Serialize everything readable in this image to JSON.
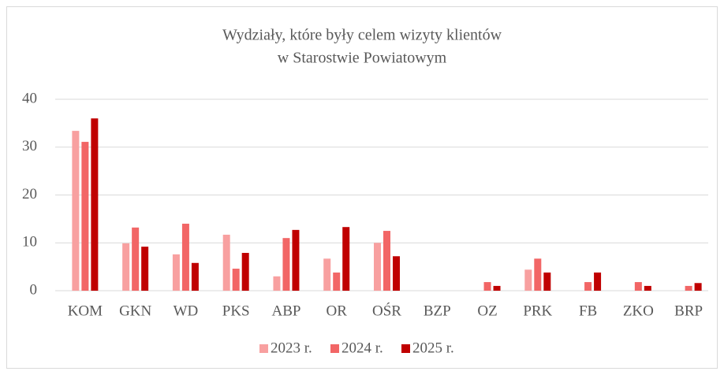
{
  "chart_data": {
    "type": "bar",
    "title": [
      "Wydziały, które były celem wizyty klientów",
      "w Starostwie Powiatowym"
    ],
    "categories": [
      "KOM",
      "GKN",
      "WD",
      "PKS",
      "ABP",
      "OR",
      "OŚR",
      "BZP",
      "OZ",
      "PRK",
      "FB",
      "ZKO",
      "BRP"
    ],
    "series": [
      {
        "name": "2023 r.",
        "color": "#f8a0a0",
        "values": [
          33.4,
          9.9,
          7.6,
          11.7,
          3,
          6.7,
          10,
          0,
          0,
          4.4,
          0,
          0,
          0
        ]
      },
      {
        "name": "2024 r.",
        "color": "#f26666",
        "values": [
          31.1,
          13.2,
          14,
          4.6,
          11,
          3.8,
          12.5,
          0,
          1.8,
          6.7,
          1.8,
          1.8,
          1
        ]
      },
      {
        "name": "2025 r.",
        "color": "#c00000",
        "values": [
          36,
          9.2,
          5.8,
          7.9,
          12.7,
          13.3,
          7.2,
          0,
          1,
          3.8,
          3.8,
          1,
          1.6
        ]
      }
    ],
    "ylim": [
      0,
      40
    ],
    "yticks": [
      0,
      10,
      20,
      30,
      40
    ],
    "grid": true,
    "legend": "bottom"
  }
}
